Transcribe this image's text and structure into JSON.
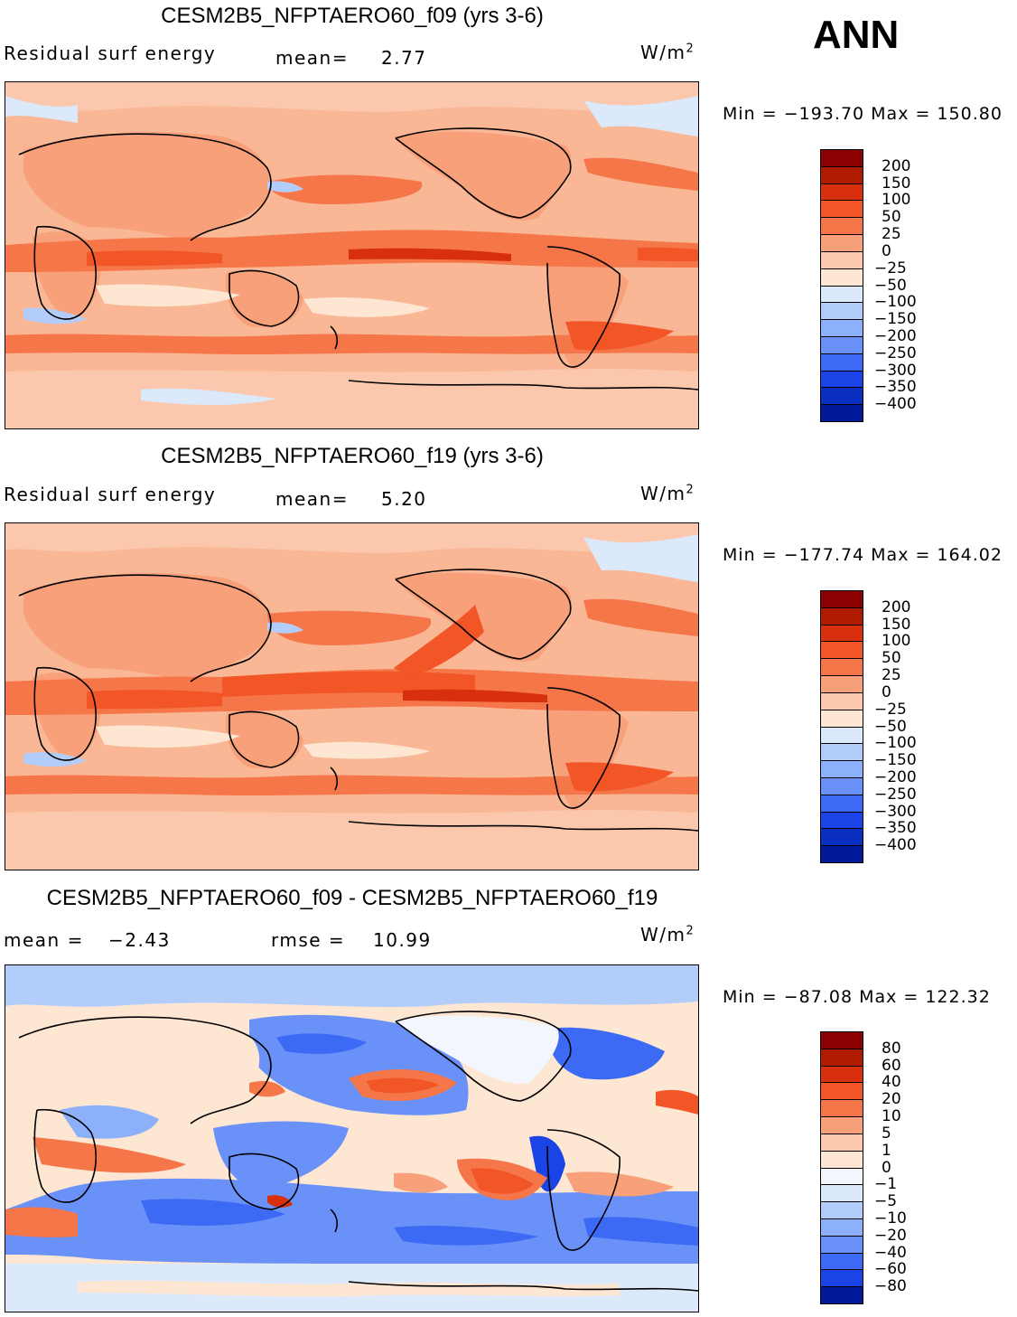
{
  "season": "ANN",
  "panels": [
    {
      "title": "CESM2B5_NFPTAERO60_f09 (yrs 3-6)",
      "left_label": "Residual surf energy",
      "mean_label": "mean=",
      "mean_value": "2.77",
      "units": "W/m",
      "units_sup": "2",
      "min_max": "Min = −193.70 Max = 150.80"
    },
    {
      "title": "CESM2B5_NFPTAERO60_f19 (yrs 3-6)",
      "left_label": "Residual surf energy",
      "mean_label": "mean=",
      "mean_value": "5.20",
      "units": "W/m",
      "units_sup": "2",
      "min_max": "Min = −177.74 Max = 164.02"
    },
    {
      "title": "CESM2B5_NFPTAERO60_f09 - CESM2B5_NFPTAERO60_f19",
      "left_label": "mean =",
      "mean_label_left_value": "−2.43",
      "mean_label": "rmse =",
      "mean_value": "10.99",
      "units": "W/m",
      "units_sup": "2",
      "min_max": "Min = −87.08 Max = 122.32"
    }
  ],
  "chart_data": [
    {
      "type": "heatmap",
      "title": "CESM2B5_NFPTAERO60_f09 (yrs 3-6)",
      "variable": "Residual surf energy",
      "units": "W/m2",
      "mean": 2.77,
      "min": -193.7,
      "max": 150.8,
      "colorbar_levels": [
        "200",
        "150",
        "100",
        "50",
        "25",
        "0",
        "−25",
        "−50",
        "−100",
        "−150",
        "−200",
        "−250",
        "−300",
        "−350",
        "−400"
      ],
      "colorbar_colors": [
        "#8b0000",
        "#b01c00",
        "#d8300c",
        "#f25526",
        "#f57648",
        "#f8a07a",
        "#fbc7ad",
        "#fde6d2",
        "#dbe9fb",
        "#b3cdfb",
        "#8db0fb",
        "#6a91f8",
        "#3d6af5",
        "#1a44e6",
        "#0a2ec0",
        "#001a99"
      ]
    },
    {
      "type": "heatmap",
      "title": "CESM2B5_NFPTAERO60_f19 (yrs 3-6)",
      "variable": "Residual surf energy",
      "units": "W/m2",
      "mean": 5.2,
      "min": -177.74,
      "max": 164.02,
      "colorbar_levels": [
        "200",
        "150",
        "100",
        "50",
        "25",
        "0",
        "−25",
        "−50",
        "−100",
        "−150",
        "−200",
        "−250",
        "−300",
        "−350",
        "−400"
      ],
      "colorbar_colors": [
        "#8b0000",
        "#b01c00",
        "#d8300c",
        "#f25526",
        "#f57648",
        "#f8a07a",
        "#fbc7ad",
        "#fde6d2",
        "#dbe9fb",
        "#b3cdfb",
        "#8db0fb",
        "#6a91f8",
        "#3d6af5",
        "#1a44e6",
        "#0a2ec0",
        "#001a99"
      ]
    },
    {
      "type": "heatmap",
      "title": "CESM2B5_NFPTAERO60_f09 - CESM2B5_NFPTAERO60_f19",
      "units": "W/m2",
      "mean": -2.43,
      "rmse": 10.99,
      "min": -87.08,
      "max": 122.32,
      "colorbar_levels": [
        "80",
        "60",
        "40",
        "20",
        "10",
        "5",
        "1",
        "0",
        "−1",
        "−5",
        "−10",
        "−20",
        "−40",
        "−60",
        "−80"
      ],
      "colorbar_colors": [
        "#8b0000",
        "#b01c00",
        "#d8300c",
        "#f25526",
        "#f57648",
        "#f8a07a",
        "#fbc7ad",
        "#fde6d2",
        "#f3f6fd",
        "#dbe9fb",
        "#b3cdfb",
        "#8db0fb",
        "#6a91f8",
        "#3d6af5",
        "#1a44e6",
        "#001a99"
      ]
    }
  ]
}
